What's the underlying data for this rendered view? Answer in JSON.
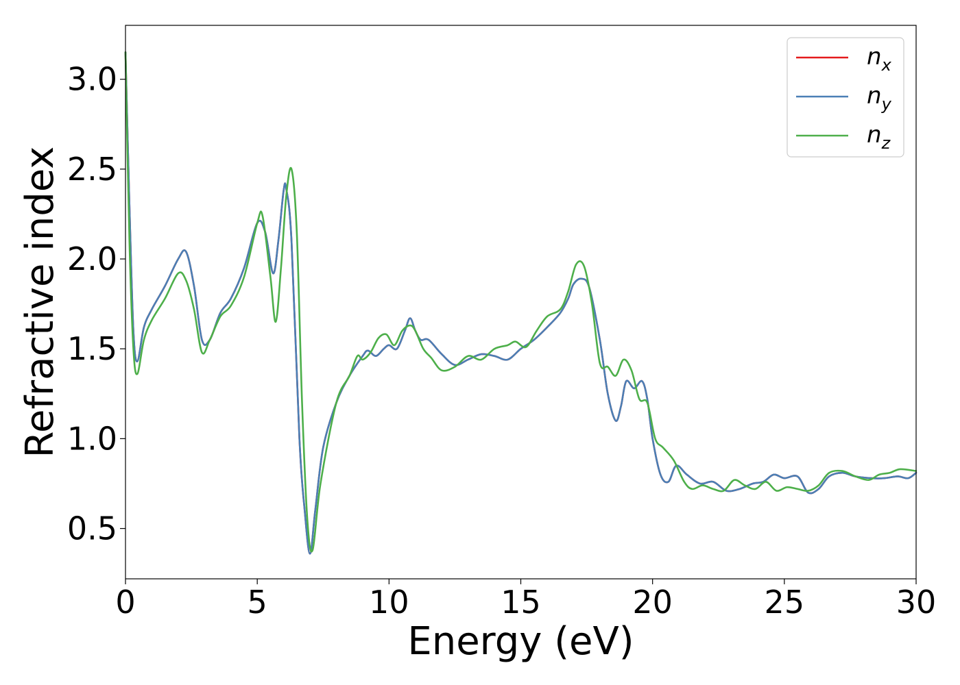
{
  "chart_data": {
    "type": "line",
    "xlabel": "Energy (eV)",
    "ylabel": "Refractive index",
    "xlim": [
      0,
      30
    ],
    "ylim": [
      0.22,
      3.3
    ],
    "xticks": [
      0,
      5,
      10,
      15,
      20,
      25,
      30
    ],
    "xtick_labels": [
      "0",
      "5",
      "10",
      "15",
      "20",
      "25",
      "30"
    ],
    "yticks": [
      0.5,
      1.0,
      1.5,
      2.0,
      2.5,
      3.0
    ],
    "ytick_labels": [
      "0.5",
      "1.0",
      "1.5",
      "2.0",
      "2.5",
      "3.0"
    ],
    "grid": false,
    "legend_position": "top-right",
    "series": [
      {
        "name": "n",
        "subscript": "x",
        "color": "#e41a1c",
        "x": [
          0,
          0.15,
          0.3,
          0.45,
          0.7,
          1.0,
          1.5,
          2.0,
          2.3,
          2.6,
          2.9,
          3.2,
          3.6,
          4.0,
          4.5,
          5.0,
          5.3,
          5.6,
          5.8,
          6.0,
          6.1,
          6.3,
          6.6,
          6.8,
          7.0,
          7.2,
          7.5,
          8.0,
          8.5,
          9.0,
          9.2,
          9.5,
          9.8,
          10.0,
          10.3,
          10.6,
          10.8,
          11.0,
          11.2,
          11.5,
          12.0,
          12.5,
          13.0,
          13.5,
          14.0,
          14.5,
          15.0,
          15.5,
          16.0,
          16.5,
          16.8,
          17.0,
          17.3,
          17.6,
          18.0,
          18.3,
          18.6,
          18.8,
          19.0,
          19.3,
          19.6,
          19.8,
          20.0,
          20.3,
          20.6,
          20.9,
          21.3,
          21.8,
          22.3,
          22.8,
          23.3,
          23.8,
          24.2,
          24.6,
          25.0,
          25.5,
          25.9,
          26.3,
          26.7,
          27.2,
          27.7,
          28.3,
          28.8,
          29.3,
          29.7,
          30.0
        ],
        "y": [
          3.15,
          2.3,
          1.6,
          1.43,
          1.62,
          1.72,
          1.85,
          2.0,
          2.04,
          1.85,
          1.55,
          1.55,
          1.7,
          1.78,
          1.95,
          2.2,
          2.15,
          1.92,
          2.1,
          2.38,
          2.39,
          2.1,
          1.0,
          0.6,
          0.36,
          0.6,
          0.95,
          1.2,
          1.35,
          1.46,
          1.49,
          1.46,
          1.5,
          1.52,
          1.5,
          1.6,
          1.67,
          1.6,
          1.55,
          1.55,
          1.47,
          1.41,
          1.44,
          1.47,
          1.46,
          1.44,
          1.5,
          1.55,
          1.62,
          1.7,
          1.78,
          1.86,
          1.89,
          1.84,
          1.55,
          1.25,
          1.1,
          1.18,
          1.32,
          1.28,
          1.32,
          1.22,
          1.0,
          0.8,
          0.76,
          0.85,
          0.8,
          0.75,
          0.76,
          0.71,
          0.72,
          0.75,
          0.76,
          0.8,
          0.78,
          0.79,
          0.7,
          0.72,
          0.79,
          0.81,
          0.79,
          0.78,
          0.78,
          0.79,
          0.78,
          0.81
        ]
      },
      {
        "name": "n",
        "subscript": "y",
        "color": "#4a7fb5",
        "x": [
          0,
          0.15,
          0.3,
          0.45,
          0.7,
          1.0,
          1.5,
          2.0,
          2.3,
          2.6,
          2.9,
          3.2,
          3.6,
          4.0,
          4.5,
          5.0,
          5.3,
          5.6,
          5.8,
          6.0,
          6.1,
          6.3,
          6.6,
          6.8,
          7.0,
          7.2,
          7.5,
          8.0,
          8.5,
          9.0,
          9.2,
          9.5,
          9.8,
          10.0,
          10.3,
          10.6,
          10.8,
          11.0,
          11.2,
          11.5,
          12.0,
          12.5,
          13.0,
          13.5,
          14.0,
          14.5,
          15.0,
          15.5,
          16.0,
          16.5,
          16.8,
          17.0,
          17.3,
          17.6,
          18.0,
          18.3,
          18.6,
          18.8,
          19.0,
          19.3,
          19.6,
          19.8,
          20.0,
          20.3,
          20.6,
          20.9,
          21.3,
          21.8,
          22.3,
          22.8,
          23.3,
          23.8,
          24.2,
          24.6,
          25.0,
          25.5,
          25.9,
          26.3,
          26.7,
          27.2,
          27.7,
          28.3,
          28.8,
          29.3,
          29.7,
          30.0
        ],
        "y": [
          3.15,
          2.3,
          1.6,
          1.43,
          1.62,
          1.72,
          1.85,
          2.0,
          2.04,
          1.85,
          1.55,
          1.55,
          1.7,
          1.78,
          1.95,
          2.2,
          2.15,
          1.92,
          2.1,
          2.38,
          2.39,
          2.1,
          1.0,
          0.6,
          0.36,
          0.6,
          0.95,
          1.2,
          1.35,
          1.46,
          1.49,
          1.46,
          1.5,
          1.52,
          1.5,
          1.6,
          1.67,
          1.6,
          1.55,
          1.55,
          1.47,
          1.41,
          1.44,
          1.47,
          1.46,
          1.44,
          1.5,
          1.55,
          1.62,
          1.7,
          1.78,
          1.86,
          1.89,
          1.84,
          1.55,
          1.25,
          1.1,
          1.18,
          1.32,
          1.28,
          1.32,
          1.22,
          1.0,
          0.8,
          0.76,
          0.85,
          0.8,
          0.75,
          0.76,
          0.71,
          0.72,
          0.75,
          0.76,
          0.8,
          0.78,
          0.79,
          0.7,
          0.72,
          0.79,
          0.81,
          0.79,
          0.78,
          0.78,
          0.79,
          0.78,
          0.81
        ]
      },
      {
        "name": "n",
        "subscript": "z",
        "color": "#4daf4a",
        "x": [
          0,
          0.15,
          0.3,
          0.45,
          0.7,
          1.0,
          1.5,
          2.0,
          2.3,
          2.6,
          2.9,
          3.2,
          3.6,
          4.0,
          4.5,
          5.0,
          5.2,
          5.5,
          5.7,
          5.9,
          6.1,
          6.3,
          6.5,
          6.7,
          6.9,
          7.1,
          7.4,
          8.0,
          8.5,
          8.8,
          9.0,
          9.3,
          9.6,
          9.9,
          10.2,
          10.5,
          10.8,
          11.0,
          11.3,
          11.6,
          12.0,
          12.5,
          13.0,
          13.5,
          14.0,
          14.5,
          14.8,
          15.2,
          15.6,
          16.0,
          16.5,
          16.8,
          17.1,
          17.4,
          17.7,
          18.0,
          18.3,
          18.6,
          18.9,
          19.2,
          19.5,
          19.8,
          20.1,
          20.4,
          20.8,
          21.2,
          21.5,
          21.9,
          22.3,
          22.7,
          23.1,
          23.5,
          23.9,
          24.3,
          24.7,
          25.1,
          25.5,
          25.9,
          26.3,
          26.7,
          27.2,
          27.7,
          28.2,
          28.6,
          29.0,
          29.4,
          30.0
        ],
        "y": [
          3.15,
          2.1,
          1.5,
          1.36,
          1.55,
          1.66,
          1.78,
          1.92,
          1.88,
          1.72,
          1.48,
          1.55,
          1.68,
          1.74,
          1.9,
          2.2,
          2.24,
          1.9,
          1.65,
          1.95,
          2.35,
          2.5,
          2.15,
          1.2,
          0.55,
          0.38,
          0.75,
          1.2,
          1.35,
          1.46,
          1.44,
          1.48,
          1.56,
          1.58,
          1.52,
          1.6,
          1.63,
          1.6,
          1.5,
          1.45,
          1.38,
          1.4,
          1.46,
          1.44,
          1.5,
          1.52,
          1.54,
          1.51,
          1.6,
          1.68,
          1.72,
          1.82,
          1.97,
          1.96,
          1.75,
          1.42,
          1.4,
          1.35,
          1.44,
          1.38,
          1.22,
          1.2,
          1.0,
          0.95,
          0.88,
          0.76,
          0.72,
          0.74,
          0.72,
          0.71,
          0.77,
          0.74,
          0.72,
          0.76,
          0.71,
          0.73,
          0.72,
          0.71,
          0.74,
          0.81,
          0.82,
          0.79,
          0.77,
          0.8,
          0.81,
          0.83,
          0.82
        ]
      }
    ]
  }
}
